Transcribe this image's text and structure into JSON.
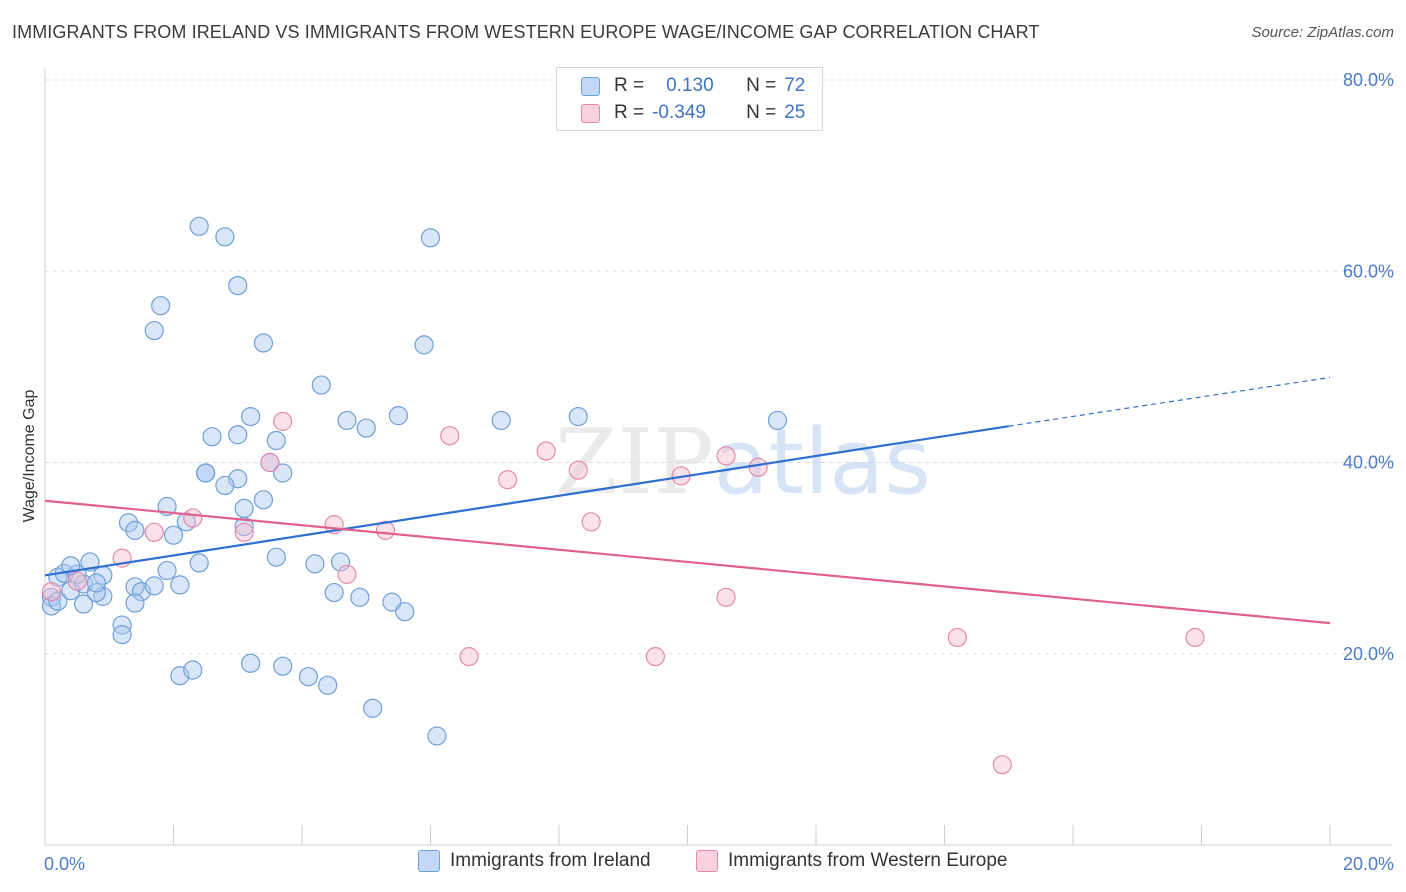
{
  "title": "IMMIGRANTS FROM IRELAND VS IMMIGRANTS FROM WESTERN EUROPE WAGE/INCOME GAP CORRELATION CHART",
  "source": "Source: ZipAtlas.com",
  "watermark": {
    "part1": "ZIP",
    "part2": "atlas"
  },
  "legend": {
    "rows": [
      {
        "r_label": "R =",
        "r_value": "0.130",
        "n_label": "N =",
        "n_value": "72"
      },
      {
        "r_label": "R =",
        "r_value": "-0.349",
        "n_label": "N =",
        "n_value": "25"
      }
    ]
  },
  "colors": {
    "blue_fill": "#a9c8f0",
    "blue_stroke": "#6f9fd8",
    "blue_line": "#2f6fd0",
    "pink_fill": "#f5bcd0",
    "pink_stroke": "#e58aaa",
    "pink_line": "#e0608f",
    "tick_text": "#4a7cc9",
    "grid": "#dcdcdc"
  },
  "chart_data": {
    "type": "scatter",
    "title": "IMMIGRANTS FROM IRELAND VS IMMIGRANTS FROM WESTERN EUROPE WAGE/INCOME GAP CORRELATION CHART",
    "xlabel": "",
    "ylabel": "Wage/Income Gap",
    "xlim": [
      0,
      20
    ],
    "ylim": [
      0,
      80
    ],
    "x_ticks": [
      {
        "value": 0,
        "label": "0.0%"
      },
      {
        "value": 20,
        "label": "20.0%"
      }
    ],
    "y_ticks": [
      {
        "value": 20,
        "label": "20.0%"
      },
      {
        "value": 40,
        "label": "40.0%"
      },
      {
        "value": 60,
        "label": "60.0%"
      },
      {
        "value": 80,
        "label": "80.0%"
      }
    ],
    "grid": "horizontal dashed",
    "legend_position": "top-center",
    "series": [
      {
        "name": "Immigrants from Ireland",
        "color": "blue",
        "points": [
          [
            0.1,
            25.9
          ],
          [
            0.1,
            25.0
          ],
          [
            0.2,
            28.0
          ],
          [
            0.2,
            25.5
          ],
          [
            0.4,
            26.6
          ],
          [
            0.6,
            27.3
          ],
          [
            0.9,
            26.0
          ],
          [
            1.4,
            27.0
          ],
          [
            0.3,
            28.4
          ],
          [
            0.5,
            28.3
          ],
          [
            0.8,
            26.4
          ],
          [
            0.4,
            29.2
          ],
          [
            0.7,
            29.6
          ],
          [
            0.9,
            28.2
          ],
          [
            0.8,
            27.4
          ],
          [
            0.6,
            25.2
          ],
          [
            1.5,
            26.5
          ],
          [
            2.1,
            27.2
          ],
          [
            1.2,
            23.0
          ],
          [
            1.2,
            22.0
          ],
          [
            1.4,
            25.3
          ],
          [
            1.7,
            27.1
          ],
          [
            1.9,
            28.7
          ],
          [
            2.4,
            29.5
          ],
          [
            1.3,
            33.7
          ],
          [
            1.9,
            35.4
          ],
          [
            2.0,
            32.4
          ],
          [
            1.4,
            32.9
          ],
          [
            2.2,
            33.8
          ],
          [
            2.5,
            38.9
          ],
          [
            2.5,
            38.9
          ],
          [
            3.0,
            38.3
          ],
          [
            2.8,
            37.6
          ],
          [
            3.1,
            33.3
          ],
          [
            3.1,
            35.2
          ],
          [
            3.4,
            36.1
          ],
          [
            3.5,
            40.0
          ],
          [
            3.6,
            42.3
          ],
          [
            2.6,
            42.7
          ],
          [
            3.0,
            42.9
          ],
          [
            3.2,
            44.8
          ],
          [
            3.7,
            38.9
          ],
          [
            4.3,
            48.1
          ],
          [
            4.7,
            44.4
          ],
          [
            5.0,
            43.6
          ],
          [
            5.5,
            44.9
          ],
          [
            5.9,
            52.3
          ],
          [
            7.1,
            44.4
          ],
          [
            8.3,
            44.8
          ],
          [
            11.4,
            44.4
          ],
          [
            1.7,
            53.8
          ],
          [
            1.8,
            56.4
          ],
          [
            2.4,
            64.7
          ],
          [
            2.8,
            63.6
          ],
          [
            3.0,
            58.5
          ],
          [
            3.4,
            52.5
          ],
          [
            6.0,
            63.5
          ],
          [
            3.6,
            30.1
          ],
          [
            4.2,
            29.4
          ],
          [
            4.6,
            29.6
          ],
          [
            4.5,
            26.4
          ],
          [
            4.9,
            25.9
          ],
          [
            5.4,
            25.4
          ],
          [
            5.6,
            24.4
          ],
          [
            3.2,
            19.0
          ],
          [
            3.7,
            18.7
          ],
          [
            2.1,
            17.7
          ],
          [
            2.3,
            18.3
          ],
          [
            4.1,
            17.6
          ],
          [
            4.4,
            16.7
          ],
          [
            5.1,
            14.3
          ],
          [
            6.1,
            11.4
          ]
        ]
      },
      {
        "name": "Immigrants from Western Europe",
        "color": "pink",
        "points": [
          [
            0.1,
            26.5
          ],
          [
            0.5,
            27.6
          ],
          [
            1.2,
            30.0
          ],
          [
            1.7,
            32.7
          ],
          [
            2.3,
            34.2
          ],
          [
            3.1,
            32.7
          ],
          [
            3.5,
            40.0
          ],
          [
            3.7,
            44.3
          ],
          [
            4.5,
            33.5
          ],
          [
            4.7,
            28.3
          ],
          [
            5.3,
            32.9
          ],
          [
            6.3,
            42.8
          ],
          [
            6.6,
            19.7
          ],
          [
            7.2,
            38.2
          ],
          [
            7.8,
            41.2
          ],
          [
            8.3,
            39.2
          ],
          [
            8.5,
            33.8
          ],
          [
            9.5,
            19.7
          ],
          [
            9.9,
            38.6
          ],
          [
            10.6,
            40.7
          ],
          [
            10.6,
            25.9
          ],
          [
            11.1,
            39.5
          ],
          [
            14.2,
            21.7
          ],
          [
            14.9,
            8.4
          ],
          [
            17.9,
            21.7
          ]
        ]
      }
    ],
    "trend_lines": [
      {
        "series": "Immigrants from Ireland",
        "solid": [
          [
            0.0,
            28.2
          ],
          [
            15.0,
            43.8
          ]
        ],
        "dashed": [
          [
            15.0,
            43.8
          ],
          [
            20.0,
            48.9
          ]
        ]
      },
      {
        "series": "Immigrants from Western Europe",
        "solid": [
          [
            0.0,
            36.0
          ],
          [
            20.0,
            23.2
          ]
        ]
      }
    ]
  }
}
